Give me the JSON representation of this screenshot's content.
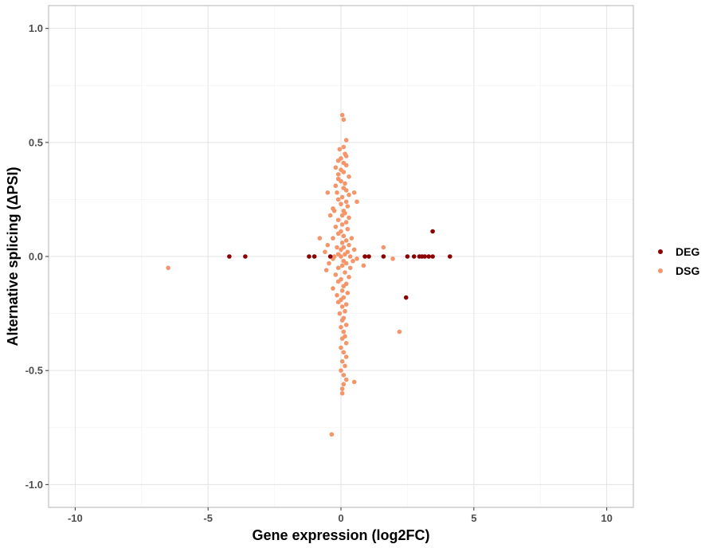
{
  "chart_data": {
    "type": "scatter",
    "xlabel": "Gene expression (log2FC)",
    "ylabel": "Alternative splicing (ΔPSI)",
    "xlim": [
      -11,
      11
    ],
    "ylim": [
      -1.1,
      1.1
    ],
    "xticks": [
      -10,
      -5,
      0,
      5,
      10
    ],
    "xtick_labels": [
      "-10",
      "-5",
      "0",
      "5",
      "10"
    ],
    "yticks": [
      -1.0,
      -0.5,
      0.0,
      0.5,
      1.0
    ],
    "ytick_labels": [
      "-1.0",
      "-0.5",
      "0.0",
      "0.5",
      "1.0"
    ],
    "grid": true,
    "legend_position": "right",
    "series": [
      {
        "name": "DEG",
        "color": "#8b0000",
        "points": [
          [
            -4.2,
            0.0
          ],
          [
            -3.6,
            0.0
          ],
          [
            -1.2,
            0.0
          ],
          [
            -1.0,
            0.0
          ],
          [
            -0.4,
            0.0
          ],
          [
            0.9,
            0.0
          ],
          [
            1.05,
            0.0
          ],
          [
            1.6,
            0.0
          ],
          [
            2.5,
            0.0
          ],
          [
            2.75,
            0.0
          ],
          [
            2.95,
            0.0
          ],
          [
            3.05,
            0.0
          ],
          [
            3.15,
            0.0
          ],
          [
            3.3,
            0.0
          ],
          [
            3.45,
            0.0
          ],
          [
            4.1,
            0.0
          ],
          [
            3.45,
            0.11
          ],
          [
            2.45,
            -0.18
          ]
        ]
      },
      {
        "name": "DSG",
        "color": "#f4956a",
        "points": [
          [
            -6.5,
            -0.05
          ],
          [
            0.05,
            0.62
          ],
          [
            0.1,
            0.6
          ],
          [
            0.2,
            0.51
          ],
          [
            0.1,
            0.48
          ],
          [
            -0.05,
            0.47
          ],
          [
            0.15,
            0.45
          ],
          [
            0.2,
            0.44
          ],
          [
            0.0,
            0.43
          ],
          [
            -0.1,
            0.42
          ],
          [
            0.1,
            0.41
          ],
          [
            0.2,
            0.4
          ],
          [
            -0.2,
            0.39
          ],
          [
            0.0,
            0.38
          ],
          [
            0.1,
            0.37
          ],
          [
            -0.1,
            0.36
          ],
          [
            0.3,
            0.35
          ],
          [
            -0.1,
            0.34
          ],
          [
            0.0,
            0.33
          ],
          [
            0.15,
            0.32
          ],
          [
            -0.2,
            0.31
          ],
          [
            0.1,
            0.3
          ],
          [
            0.2,
            0.29
          ],
          [
            -0.15,
            0.28
          ],
          [
            0.3,
            0.27
          ],
          [
            0.05,
            0.26
          ],
          [
            -0.1,
            0.25
          ],
          [
            0.2,
            0.24
          ],
          [
            -0.5,
            0.28
          ],
          [
            0.5,
            0.28
          ],
          [
            0.0,
            0.23
          ],
          [
            0.25,
            0.22
          ],
          [
            -0.3,
            0.21
          ],
          [
            0.1,
            0.2
          ],
          [
            0.6,
            0.24
          ],
          [
            -0.25,
            0.2
          ],
          [
            0.15,
            0.19
          ],
          [
            0.05,
            0.18
          ],
          [
            -0.4,
            0.18
          ],
          [
            0.3,
            0.17
          ],
          [
            -0.1,
            0.16
          ],
          [
            0.2,
            0.15
          ],
          [
            0.05,
            0.14
          ],
          [
            -0.2,
            0.13
          ],
          [
            0.25,
            0.12
          ],
          [
            0.0,
            0.11
          ],
          [
            -0.1,
            0.1
          ],
          [
            0.1,
            0.09
          ],
          [
            0.4,
            0.08
          ],
          [
            -0.3,
            0.08
          ],
          [
            -0.8,
            0.08
          ],
          [
            0.2,
            0.07
          ],
          [
            0.05,
            0.06
          ],
          [
            -0.5,
            0.05
          ],
          [
            0.3,
            0.05
          ],
          [
            0.1,
            0.04
          ],
          [
            -0.15,
            0.04
          ],
          [
            0.5,
            0.03
          ],
          [
            0.0,
            0.03
          ],
          [
            -0.6,
            0.02
          ],
          [
            0.25,
            0.02
          ],
          [
            0.15,
            0.01
          ],
          [
            -0.1,
            0.01
          ],
          [
            0.35,
            0.0
          ],
          [
            -0.25,
            0.0
          ],
          [
            0.0,
            0.0
          ],
          [
            0.6,
            -0.01
          ],
          [
            -0.3,
            -0.01
          ],
          [
            0.1,
            -0.02
          ],
          [
            0.45,
            -0.02
          ],
          [
            -0.45,
            -0.03
          ],
          [
            0.2,
            -0.03
          ],
          [
            0.05,
            -0.04
          ],
          [
            -0.1,
            -0.05
          ],
          [
            0.35,
            -0.05
          ],
          [
            0.85,
            -0.04
          ],
          [
            -0.55,
            -0.06
          ],
          [
            0.15,
            -0.07
          ],
          [
            -0.2,
            -0.08
          ],
          [
            0.3,
            -0.09
          ],
          [
            0.0,
            -0.1
          ],
          [
            -0.1,
            -0.11
          ],
          [
            0.2,
            -0.12
          ],
          [
            0.1,
            -0.13
          ],
          [
            -0.3,
            -0.14
          ],
          [
            0.05,
            -0.15
          ],
          [
            0.25,
            -0.16
          ],
          [
            -0.15,
            -0.17
          ],
          [
            0.1,
            -0.18
          ],
          [
            0.0,
            -0.19
          ],
          [
            -0.1,
            -0.2
          ],
          [
            0.2,
            -0.21
          ],
          [
            0.05,
            -0.22
          ],
          [
            0.15,
            -0.24
          ],
          [
            -0.05,
            -0.25
          ],
          [
            0.1,
            -0.27
          ],
          [
            0.05,
            -0.28
          ],
          [
            0.2,
            -0.3
          ],
          [
            0.0,
            -0.31
          ],
          [
            0.1,
            -0.33
          ],
          [
            0.15,
            -0.35
          ],
          [
            0.05,
            -0.36
          ],
          [
            0.2,
            -0.38
          ],
          [
            0.0,
            -0.4
          ],
          [
            0.1,
            -0.42
          ],
          [
            0.2,
            -0.44
          ],
          [
            0.05,
            -0.46
          ],
          [
            0.15,
            -0.48
          ],
          [
            0.0,
            -0.5
          ],
          [
            0.1,
            -0.52
          ],
          [
            0.2,
            -0.54
          ],
          [
            0.1,
            -0.56
          ],
          [
            0.05,
            -0.58
          ],
          [
            0.05,
            -0.6
          ],
          [
            0.5,
            -0.55
          ],
          [
            -0.35,
            -0.78
          ],
          [
            1.6,
            0.04
          ],
          [
            1.95,
            -0.01
          ],
          [
            2.2,
            -0.33
          ]
        ]
      }
    ]
  }
}
